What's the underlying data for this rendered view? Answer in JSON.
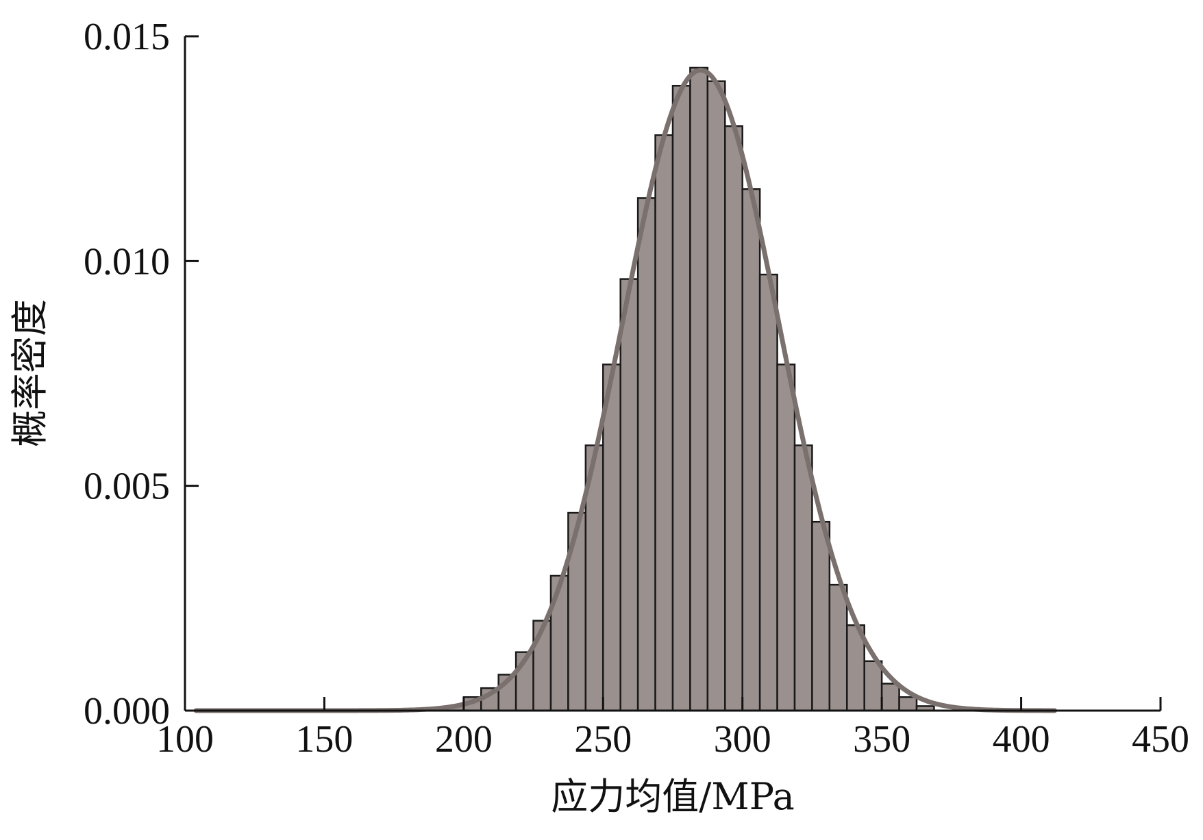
{
  "chart_data": {
    "type": "bar",
    "subtype": "histogram-with-fitted-normal-curve",
    "title": "",
    "xlabel": "应力均值/MPa",
    "ylabel": "概率密度",
    "xlim": [
      100,
      450
    ],
    "ylim": [
      0,
      0.015
    ],
    "x_ticks": [
      "100",
      "150",
      "200",
      "250",
      "300",
      "350",
      "400",
      "450"
    ],
    "y_ticks": [
      "0.000",
      "0.005",
      "0.010",
      "0.015"
    ],
    "grid": false,
    "legend": "none",
    "bin_start": 193.75,
    "bin_width": 6.25,
    "bin_density": [
      0.0001,
      0.0003,
      0.0005,
      0.0008,
      0.0013,
      0.002,
      0.003,
      0.0044,
      0.0059,
      0.0077,
      0.0096,
      0.0114,
      0.0128,
      0.0139,
      0.0143,
      0.014,
      0.013,
      0.0116,
      0.0097,
      0.0077,
      0.0059,
      0.0042,
      0.0028,
      0.0019,
      0.0011,
      0.0006,
      0.0003,
      0.0001
    ],
    "fit_curve": {
      "distribution": "normal",
      "mean": 285,
      "std": 28,
      "x_range": [
        104,
        412
      ]
    },
    "colors": {
      "bar_fill": "#9a908e",
      "bar_edge": "#1a1a1a",
      "curve": "#7a706d"
    }
  }
}
